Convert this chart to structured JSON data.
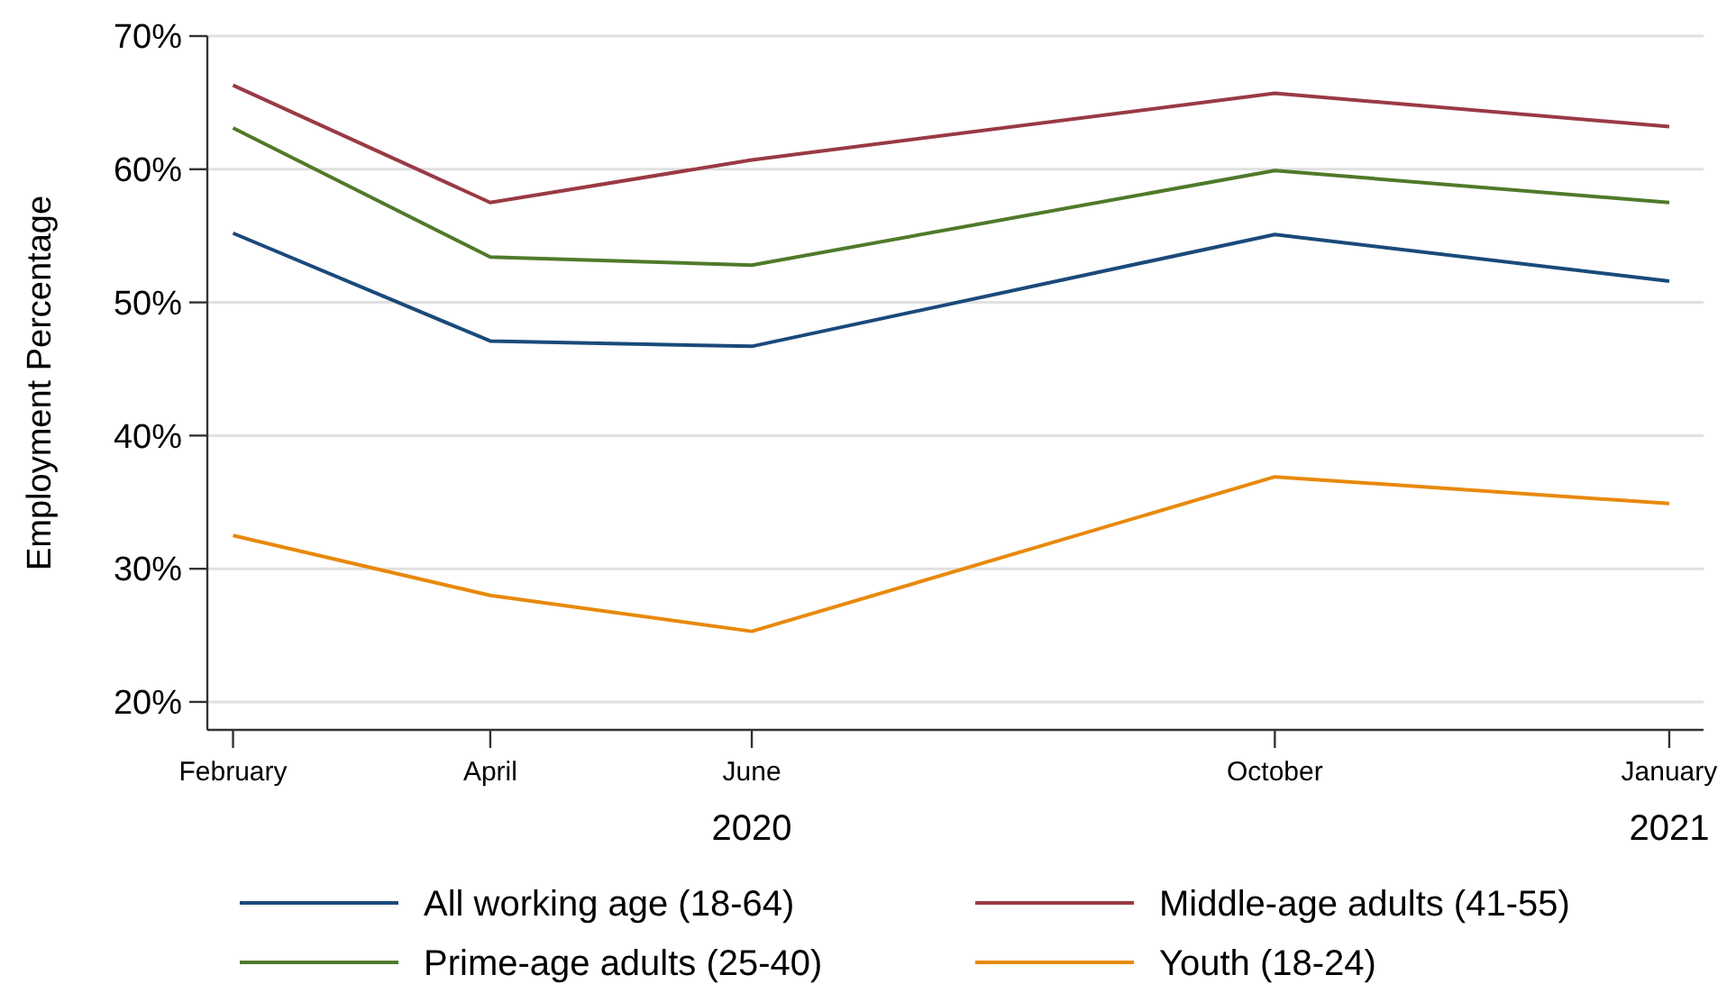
{
  "chart_data": {
    "type": "line",
    "ylabel": "Employment Percentage",
    "x": [
      "2020-02",
      "2020-04",
      "2020-06",
      "2020-10",
      "2021-01"
    ],
    "xlim": [
      "2020-01-26",
      "2021-01-09"
    ],
    "xticks": [
      {
        "value": "2020-02",
        "label": "February"
      },
      {
        "value": "2020-04",
        "label": "April"
      },
      {
        "value": "2020-06",
        "label": "June\n2020"
      },
      {
        "value": "2020-10",
        "label": "October"
      },
      {
        "value": "2021-01",
        "label": "January\n2021"
      }
    ],
    "ylim": [
      17.9,
      70
    ],
    "yticks": [
      {
        "value": 20,
        "label": "20%"
      },
      {
        "value": 30,
        "label": "30%"
      },
      {
        "value": 40,
        "label": "40%"
      },
      {
        "value": 50,
        "label": "50%"
      },
      {
        "value": 60,
        "label": "60%"
      },
      {
        "value": 70,
        "label": "70%"
      }
    ],
    "grid": "y",
    "legend": "bottom",
    "line_style": "solid",
    "marker": "none",
    "series": [
      {
        "name": "All working age (18-64)",
        "color": "#1a4a7a",
        "values": [
          55.2,
          47.1,
          46.7,
          55.1,
          51.6
        ]
      },
      {
        "name": "Middle-age adults (41-55)",
        "color": "#9a3a44",
        "values": [
          66.3,
          57.5,
          60.7,
          65.7,
          63.2
        ]
      },
      {
        "name": "Prime-age adults (25-40)",
        "color": "#4f7a2a",
        "values": [
          63.1,
          53.4,
          52.8,
          59.9,
          57.5
        ]
      },
      {
        "name": "Youth (18-24)",
        "color": "#e8890c",
        "values": [
          32.5,
          28.0,
          25.3,
          36.9,
          34.9
        ]
      }
    ]
  }
}
